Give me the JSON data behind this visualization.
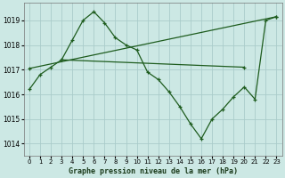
{
  "title": "Graphe pression niveau de la mer (hPa)",
  "bg_color": "#cce8e4",
  "grid_color": "#aaccca",
  "line_color": "#1e5c1e",
  "xlim": [
    -0.5,
    23.5
  ],
  "ylim": [
    1013.5,
    1019.7
  ],
  "yticks": [
    1014,
    1015,
    1016,
    1017,
    1018,
    1019
  ],
  "xticks": [
    0,
    1,
    2,
    3,
    4,
    5,
    6,
    7,
    8,
    9,
    10,
    11,
    12,
    13,
    14,
    15,
    16,
    17,
    18,
    19,
    20,
    21,
    22,
    23
  ],
  "series1_x": [
    0,
    1,
    2,
    3,
    4,
    5,
    6,
    7,
    8,
    9,
    10,
    11,
    12,
    13,
    14,
    15,
    16,
    17,
    18,
    19,
    20,
    21,
    22,
    23
  ],
  "series1_y": [
    1016.2,
    1016.8,
    1017.1,
    1017.4,
    1018.2,
    1019.0,
    1019.35,
    1018.9,
    1018.3,
    1018.0,
    1017.8,
    1016.9,
    1016.6,
    1016.1,
    1015.5,
    1014.8,
    1014.2,
    1015.0,
    1015.4,
    1015.9,
    1016.3,
    1015.8,
    1019.0,
    1019.15
  ],
  "series2_x": [
    0,
    23
  ],
  "series2_y": [
    1017.05,
    1019.15
  ],
  "series3_x": [
    3,
    20
  ],
  "series3_y": [
    1017.4,
    1017.1
  ]
}
